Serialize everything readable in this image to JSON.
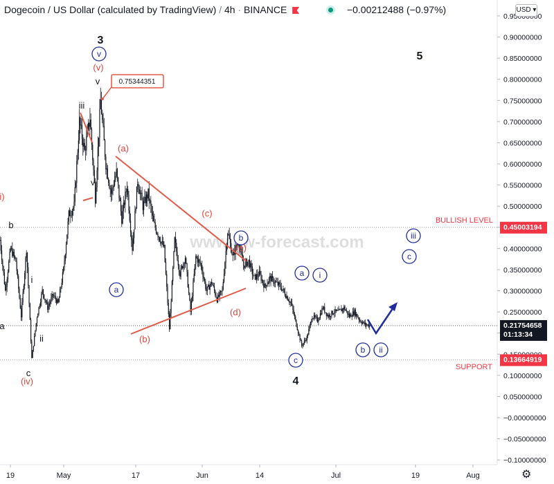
{
  "header": {
    "symbol": "Dogecoin / US Dollar (calculated by TradingView)",
    "interval": "4h",
    "exchange": "BINANCE",
    "change": "−0.00212488 (−0.97%)",
    "currency": "USD"
  },
  "watermark": "www.ew-forecast.com",
  "chart_data": {
    "type": "line",
    "subtype": "candlestick-price-chart",
    "yaxis": {
      "ticks": [
        "0.95000000",
        "0.90000000",
        "0.85000000",
        "0.80000000",
        "0.75000000",
        "0.70000000",
        "0.65000000",
        "0.60000000",
        "0.55000000",
        "0.50000000",
        "0.45000000",
        "0.40000000",
        "0.35000000",
        "0.30000000",
        "0.25000000",
        "0.20000000",
        "0.15000000",
        "0.10000000",
        "0.05000000",
        "−0.00000000",
        "−0.05000000",
        "−0.10000000"
      ],
      "range": [
        -0.1,
        0.95
      ]
    },
    "xaxis": {
      "ticks": [
        "19",
        "May",
        "17",
        "Jun",
        "14",
        "Jul",
        "19",
        "Aug"
      ]
    },
    "price_labels": {
      "bullish": {
        "label": "BULLISH LEVEL",
        "value": "0.45003194",
        "color": "#f23645"
      },
      "support": {
        "label": "SUPPORT",
        "value": "0.13664919",
        "color": "#f23645"
      },
      "current": {
        "value": "0.21754658",
        "countdown": "01:13:34",
        "color": "#131722"
      },
      "peak": {
        "value": "0.75344351"
      }
    },
    "series": [
      {
        "values": [
          0.42,
          0.3,
          0.4,
          0.37,
          0.24,
          0.4,
          0.14,
          0.24,
          0.3,
          0.26,
          0.29,
          0.27,
          0.35,
          0.48,
          0.5,
          0.7,
          0.63,
          0.71,
          0.52,
          0.75,
          0.6,
          0.53,
          0.58,
          0.47,
          0.55,
          0.4,
          0.56,
          0.5,
          0.53,
          0.46,
          0.43,
          0.4,
          0.21,
          0.42,
          0.34,
          0.38,
          0.25,
          0.38,
          0.36,
          0.3,
          0.32,
          0.28,
          0.3,
          0.44,
          0.38,
          0.42,
          0.36,
          0.37,
          0.33,
          0.34,
          0.31,
          0.33,
          0.32,
          0.31,
          0.29,
          0.27,
          0.22,
          0.17,
          0.19,
          0.24,
          0.23,
          0.26,
          0.24,
          0.25,
          0.25,
          0.26,
          0.24,
          0.25,
          0.23,
          0.22,
          0.218
        ]
      }
    ],
    "annotations": {
      "black": [
        "3",
        "5",
        "4",
        "v",
        "iii",
        "v",
        "b",
        "i",
        "ii",
        "c",
        "a"
      ],
      "red": [
        "(v)",
        "(a)",
        "(b)",
        "(c)",
        "(d)",
        "(e)",
        "(iv)",
        "i)"
      ],
      "blue_circled": [
        "v",
        "a",
        "b",
        "a",
        "i",
        "c",
        "b",
        "ii",
        "iii",
        "c"
      ]
    },
    "colors": {
      "wave_line": "#e05a47",
      "circle_label": "#1e2d9a",
      "projection": "#1e2d9a",
      "price": "#131722"
    }
  }
}
